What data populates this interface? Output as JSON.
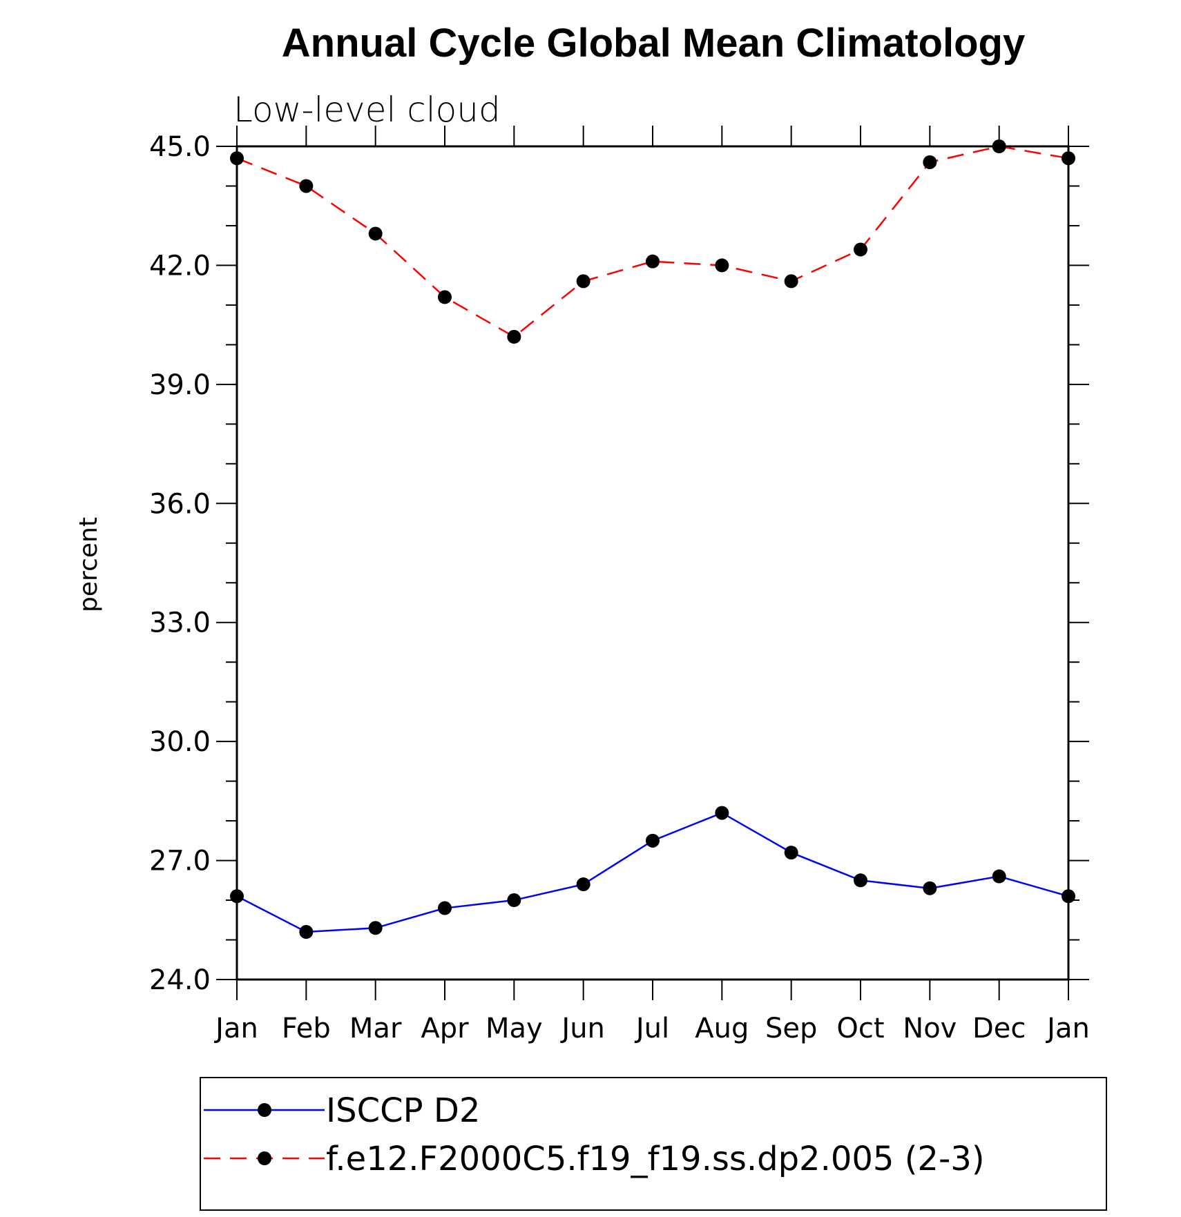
{
  "chart_data": {
    "type": "line",
    "title": "Annual Cycle Global Mean Climatology",
    "subtitle": "Low-level cloud",
    "xlabel": "",
    "ylabel": "percent",
    "categories": [
      "Jan",
      "Feb",
      "Mar",
      "Apr",
      "May",
      "Jun",
      "Jul",
      "Aug",
      "Sep",
      "Oct",
      "Nov",
      "Dec",
      "Jan"
    ],
    "ylim": [
      24.0,
      45.0
    ],
    "yticks": [
      "24.0",
      "27.0",
      "30.0",
      "33.0",
      "36.0",
      "39.0",
      "42.0",
      "45.0"
    ],
    "grid": false,
    "legend_position": "bottom",
    "series": [
      {
        "name": "ISCCP D2",
        "color": "#0000ff",
        "style": "solid",
        "marker": "filled-circle",
        "values": [
          26.1,
          25.2,
          25.3,
          25.8,
          26.0,
          26.4,
          27.5,
          28.2,
          27.2,
          26.5,
          26.3,
          26.6,
          26.1
        ]
      },
      {
        "name": "f.e12.F2000C5.f19_f19.ss.dp2.005 (2-3)",
        "color": "#ff0000",
        "style": "dashed",
        "marker": "filled-circle",
        "values": [
          44.7,
          44.0,
          42.8,
          41.2,
          40.2,
          41.6,
          42.1,
          42.0,
          41.6,
          42.4,
          44.6,
          45.0,
          44.7
        ]
      }
    ]
  }
}
